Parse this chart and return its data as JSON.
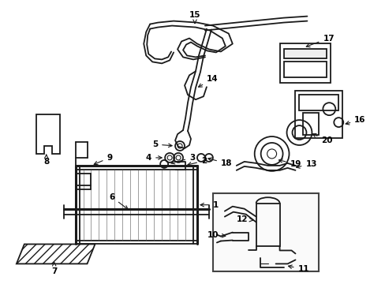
{
  "bg_color": "#ffffff",
  "line_color": "#1a1a1a",
  "fig_width": 4.89,
  "fig_height": 3.6,
  "dpi": 100,
  "fs": 7.0,
  "lw": 1.3,
  "lw_thick": 2.2
}
